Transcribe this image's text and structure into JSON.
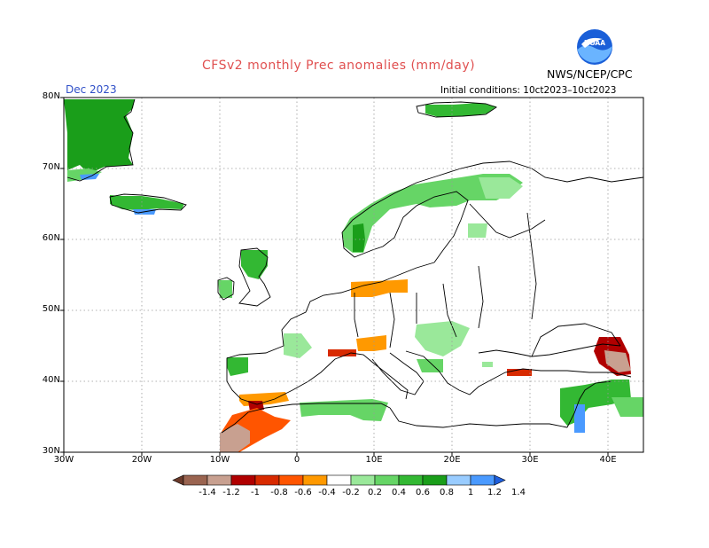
{
  "header": {
    "title": "CFSv2 monthly Prec anomalies (mm/day)",
    "agency": "NWS/NCEP/CPC",
    "logo_text": "NOAA",
    "valid_month": "Dec 2023",
    "initial_conditions": "Initial conditions: 10ct2023–10ct2023"
  },
  "map": {
    "region": "Europe",
    "lat_labels": [
      "80N",
      "70N",
      "60N",
      "50N",
      "40N",
      "30N"
    ],
    "lon_labels": [
      "30W",
      "20W",
      "10W",
      "0",
      "10E",
      "20E",
      "30E",
      "40E"
    ],
    "grid": "dotted",
    "anomaly_regions": [
      {
        "name": "greenland-coast",
        "level": 0.8
      },
      {
        "name": "greenland-south",
        "level": 0.4
      },
      {
        "name": "greenland-tip",
        "level": 1.2
      },
      {
        "name": "iceland",
        "level": 0.6
      },
      {
        "name": "iceland-south",
        "level": 1.2
      },
      {
        "name": "svalbard",
        "level": 0.6
      },
      {
        "name": "norway-coast",
        "level": 0.4
      },
      {
        "name": "norway-southwest",
        "level": 0.8
      },
      {
        "name": "northern-scandinavia",
        "level": 0.2
      },
      {
        "name": "kola",
        "level": 0.2
      },
      {
        "name": "ireland",
        "level": 0.4
      },
      {
        "name": "scotland",
        "level": 0.6
      },
      {
        "name": "germany-poland",
        "level": -0.2
      },
      {
        "name": "ukraine",
        "level": 0.2
      },
      {
        "name": "balkans",
        "level": 0.4
      },
      {
        "name": "france-west",
        "level": 0.2
      },
      {
        "name": "alps",
        "level": -0.2
      },
      {
        "name": "italy-north",
        "level": -0.6
      },
      {
        "name": "iberia-northwest",
        "level": 0.6
      },
      {
        "name": "iberia-south",
        "level": -0.2
      },
      {
        "name": "gibraltar",
        "level": -0.8
      },
      {
        "name": "morocco",
        "level": -0.4
      },
      {
        "name": "morocco-coast",
        "level": -1.0
      },
      {
        "name": "algeria-tunisia",
        "level": 0.4
      },
      {
        "name": "turkey-coast",
        "level": -0.6
      },
      {
        "name": "caucasus",
        "level": -0.8
      },
      {
        "name": "caucasus-east",
        "level": -1.0
      },
      {
        "name": "levant",
        "level": 0.6
      },
      {
        "name": "levant-coast",
        "level": 1.2
      },
      {
        "name": "middle-east",
        "level": 0.4
      },
      {
        "name": "crete-area",
        "level": 0.2
      }
    ]
  },
  "legend": {
    "labels": [
      "-1.4",
      "-1.2",
      "-1",
      "-0.8",
      "-0.6",
      "-0.4",
      "-0.2",
      "0.2",
      "0.4",
      "0.6",
      "0.8",
      "1",
      "1.2",
      "1.4"
    ],
    "colors": [
      "#6b3a2a",
      "#9a6450",
      "#c8a090",
      "#b00000",
      "#d82a00",
      "#ff5500",
      "#ff9900",
      "#ffffff",
      "#9ae89a",
      "#66d566",
      "#33b833",
      "#1a9e1a",
      "#99ccff",
      "#4a9aff",
      "#1f5fdd"
    ]
  }
}
